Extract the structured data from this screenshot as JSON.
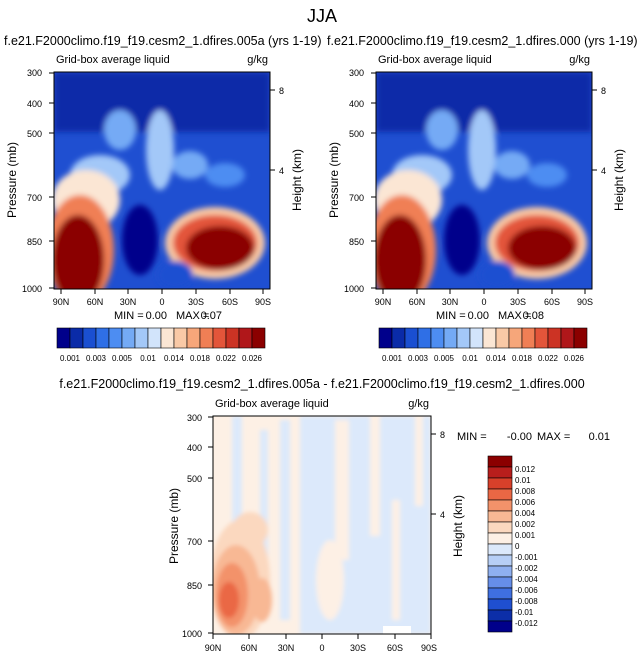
{
  "page_title": "JJA",
  "colors": {
    "seq": [
      "#00008b",
      "#0a2ba8",
      "#1a4fd1",
      "#2f6fe6",
      "#4d8df2",
      "#74aaf5",
      "#a3c8f8",
      "#d2e4fb",
      "#fbe6d4",
      "#f9c9a6",
      "#f6a67a",
      "#f07f55",
      "#e3553a",
      "#cc3324",
      "#b0171a",
      "#8b0000"
    ],
    "diff": [
      "#00008b",
      "#0c2ea8",
      "#1f4fd0",
      "#3f6fe0",
      "#668ee9",
      "#8fb0f0",
      "#b7cff6",
      "#dce9fb",
      "#fdf0e5",
      "#fbd8bf",
      "#f8b894",
      "#f3926a",
      "#ea6744",
      "#d8402a",
      "#b81e1c",
      "#8b0000"
    ]
  },
  "chart_data": [
    {
      "type": "contour",
      "title": "f.e21.F2000climo.f19_f19.cesm2_1.dfires.005a (yrs 1-19)",
      "left_label": "Grid-box average liquid",
      "right_label": "g/kg",
      "ylabel": "Pressure (mb)",
      "ylabel_right": "Height (km)",
      "y_ticks": [
        "300",
        "400",
        "500",
        "700",
        "850",
        "1000"
      ],
      "y_tick_values": [
        300,
        400,
        500,
        700,
        850,
        1000
      ],
      "y_right_ticks": [
        "8",
        "4"
      ],
      "y_right_tick_values": [
        8,
        4
      ],
      "x_ticks": [
        "90N",
        "60N",
        "30N",
        "0",
        "30S",
        "60S",
        "90S"
      ],
      "x_tick_values": [
        90,
        60,
        30,
        0,
        -30,
        -60,
        -90
      ],
      "min_label": "MIN =",
      "min_value": "0.00",
      "max_label": "MAX =",
      "max_value": "0.07",
      "colorbar_labels": [
        "0.001",
        "0.003",
        "0.005",
        "0.01",
        "0.014",
        "0.018",
        "0.022",
        "0.026"
      ],
      "colorbar_levels": [
        0.001,
        0.002,
        0.003,
        0.004,
        0.005,
        0.006,
        0.008,
        0.01,
        0.012,
        0.014,
        0.016,
        0.018,
        0.02,
        0.022,
        0.024,
        0.026
      ]
    },
    {
      "type": "contour",
      "title": "f.e21.F2000climo.f19_f19.cesm2_1.dfires.000 (yrs 1-19)",
      "left_label": "Grid-box average liquid",
      "right_label": "g/kg",
      "ylabel": "Pressure (mb)",
      "ylabel_right": "Height (km)",
      "y_ticks": [
        "300",
        "400",
        "500",
        "700",
        "850",
        "1000"
      ],
      "y_tick_values": [
        300,
        400,
        500,
        700,
        850,
        1000
      ],
      "y_right_ticks": [
        "8",
        "4"
      ],
      "y_right_tick_values": [
        8,
        4
      ],
      "x_ticks": [
        "90N",
        "60N",
        "30N",
        "0",
        "30S",
        "60S",
        "90S"
      ],
      "x_tick_values": [
        90,
        60,
        30,
        0,
        -30,
        -60,
        -90
      ],
      "min_label": "MIN =",
      "min_value": "0.00",
      "max_label": "MAX =",
      "max_value": "0.08",
      "colorbar_labels": [
        "0.001",
        "0.003",
        "0.005",
        "0.01",
        "0.014",
        "0.018",
        "0.022",
        "0.026"
      ],
      "colorbar_levels": [
        0.001,
        0.002,
        0.003,
        0.004,
        0.005,
        0.006,
        0.008,
        0.01,
        0.012,
        0.014,
        0.016,
        0.018,
        0.02,
        0.022,
        0.024,
        0.026
      ]
    },
    {
      "type": "contour",
      "title": "f.e21.F2000climo.f19_f19.cesm2_1.dfires.005a - f.e21.F2000climo.f19_f19.cesm2_1.dfires.000",
      "left_label": "Grid-box average liquid",
      "right_label": "g/kg",
      "ylabel": "Pressure (mb)",
      "ylabel_right": "Height (km)",
      "y_ticks": [
        "300",
        "400",
        "500",
        "700",
        "850",
        "1000"
      ],
      "y_tick_values": [
        300,
        400,
        500,
        700,
        850,
        1000
      ],
      "y_right_ticks": [
        "8",
        "4"
      ],
      "y_right_tick_values": [
        8,
        4
      ],
      "x_ticks": [
        "90N",
        "60N",
        "30N",
        "0",
        "30S",
        "60S",
        "90S"
      ],
      "x_tick_values": [
        90,
        60,
        30,
        0,
        -30,
        -60,
        -90
      ],
      "min_label": "MIN =",
      "min_value": "-0.00",
      "max_label": "MAX =",
      "max_value": "0.01",
      "colorbar_labels": [
        "0.012",
        "0.01",
        "0.008",
        "0.006",
        "0.004",
        "0.002",
        "0.001",
        "0",
        "-0.001",
        "-0.002",
        "-0.004",
        "-0.006",
        "-0.008",
        "-0.01",
        "-0.012"
      ]
    }
  ]
}
